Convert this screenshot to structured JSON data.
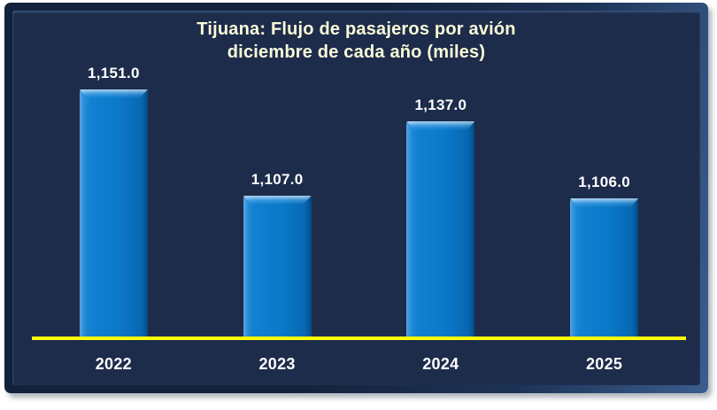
{
  "chart_data": {
    "type": "bar",
    "title": "Tijuana: Flujo de pasajeros por avión diciembre de cada año (miles)",
    "title_lines": [
      "Tijuana: Flujo de pasajeros por avión",
      "diciembre de cada año (miles)"
    ],
    "categories": [
      "2022",
      "2023",
      "2024",
      "2025"
    ],
    "values": [
      1151.0,
      1107.0,
      1137.0,
      1106.0
    ],
    "value_labels": [
      "1,151.0",
      "1,107.0",
      "1,137.0",
      "1,106.0"
    ],
    "xlabel": "",
    "ylabel": "",
    "ylim": [
      1050,
      1160
    ],
    "grid": false,
    "legend": false,
    "colors": {
      "bar": "#0b79ca",
      "background": "#1d2c4b",
      "title": "#fbfad8",
      "label": "#ffffff",
      "axis_line": "#feff00"
    }
  }
}
